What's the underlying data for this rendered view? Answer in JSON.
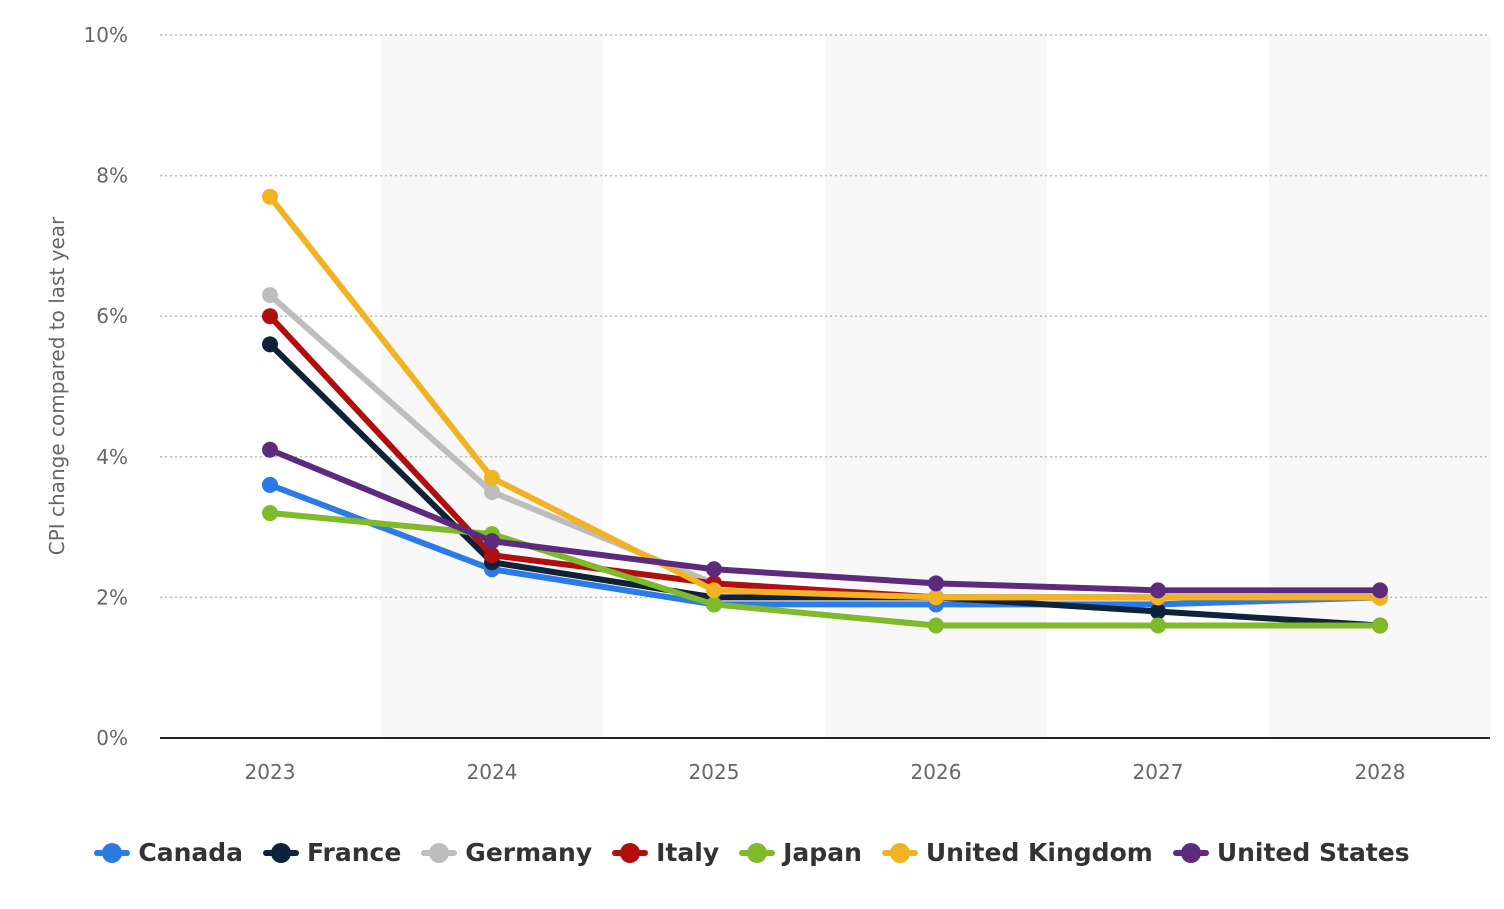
{
  "chart_data": {
    "type": "line",
    "title": "",
    "xlabel": "",
    "ylabel": "CPI change compared to last year",
    "categories": [
      "2023",
      "2024",
      "2025",
      "2026",
      "2027",
      "2028"
    ],
    "y_ticks": [
      "0%",
      "2%",
      "4%",
      "6%",
      "8%",
      "10%"
    ],
    "ylim": [
      0,
      10
    ],
    "y_unit": "%",
    "grid": "horizontal dotted",
    "legend_position": "bottom",
    "series": [
      {
        "name": "Canada",
        "color": "#2c7be5",
        "values": [
          3.6,
          2.4,
          1.9,
          1.9,
          1.9,
          2.0
        ]
      },
      {
        "name": "France",
        "color": "#0e2239",
        "values": [
          5.6,
          2.5,
          2.0,
          2.0,
          1.8,
          1.6
        ]
      },
      {
        "name": "Germany",
        "color": "#bdbdbd",
        "values": [
          6.3,
          3.5,
          2.2,
          2.0,
          2.0,
          2.0
        ]
      },
      {
        "name": "Italy",
        "color": "#b10f0f",
        "values": [
          6.0,
          2.6,
          2.2,
          2.0,
          2.0,
          2.0
        ]
      },
      {
        "name": "Japan",
        "color": "#7fba2b",
        "values": [
          3.2,
          2.9,
          1.9,
          1.6,
          1.6,
          1.6
        ]
      },
      {
        "name": "United Kingdom",
        "color": "#f0b323",
        "values": [
          7.7,
          3.7,
          2.1,
          2.0,
          2.0,
          2.0
        ]
      },
      {
        "name": "United States",
        "color": "#5e2a7e",
        "values": [
          4.1,
          2.8,
          2.4,
          2.2,
          2.1,
          2.1
        ]
      }
    ]
  }
}
